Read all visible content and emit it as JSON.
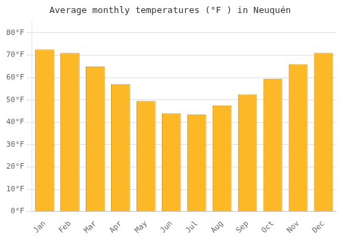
{
  "chart_data": {
    "type": "bar",
    "title": "Average monthly temperatures (°F ) in Neuquén",
    "categories": [
      "Jan",
      "Feb",
      "Mar",
      "Apr",
      "May",
      "Jun",
      "Jul",
      "Aug",
      "Sep",
      "Oct",
      "Nov",
      "Dec"
    ],
    "values": [
      72.5,
      71.0,
      65.0,
      57.0,
      49.5,
      44.0,
      43.5,
      47.5,
      52.5,
      59.5,
      66.0,
      71.0
    ],
    "color": "#FDB827",
    "ylim": [
      0,
      85
    ],
    "yticks": [
      {
        "value": 0,
        "label": "0°F"
      },
      {
        "value": 10,
        "label": "10°F"
      },
      {
        "value": 20,
        "label": "20°F"
      },
      {
        "value": 30,
        "label": "30°F"
      },
      {
        "value": 40,
        "label": "40°F"
      },
      {
        "value": 50,
        "label": "50°F"
      },
      {
        "value": 60,
        "label": "60°F"
      },
      {
        "value": 70,
        "label": "70°F"
      },
      {
        "value": 80,
        "label": "80°F"
      }
    ],
    "grid": true
  }
}
